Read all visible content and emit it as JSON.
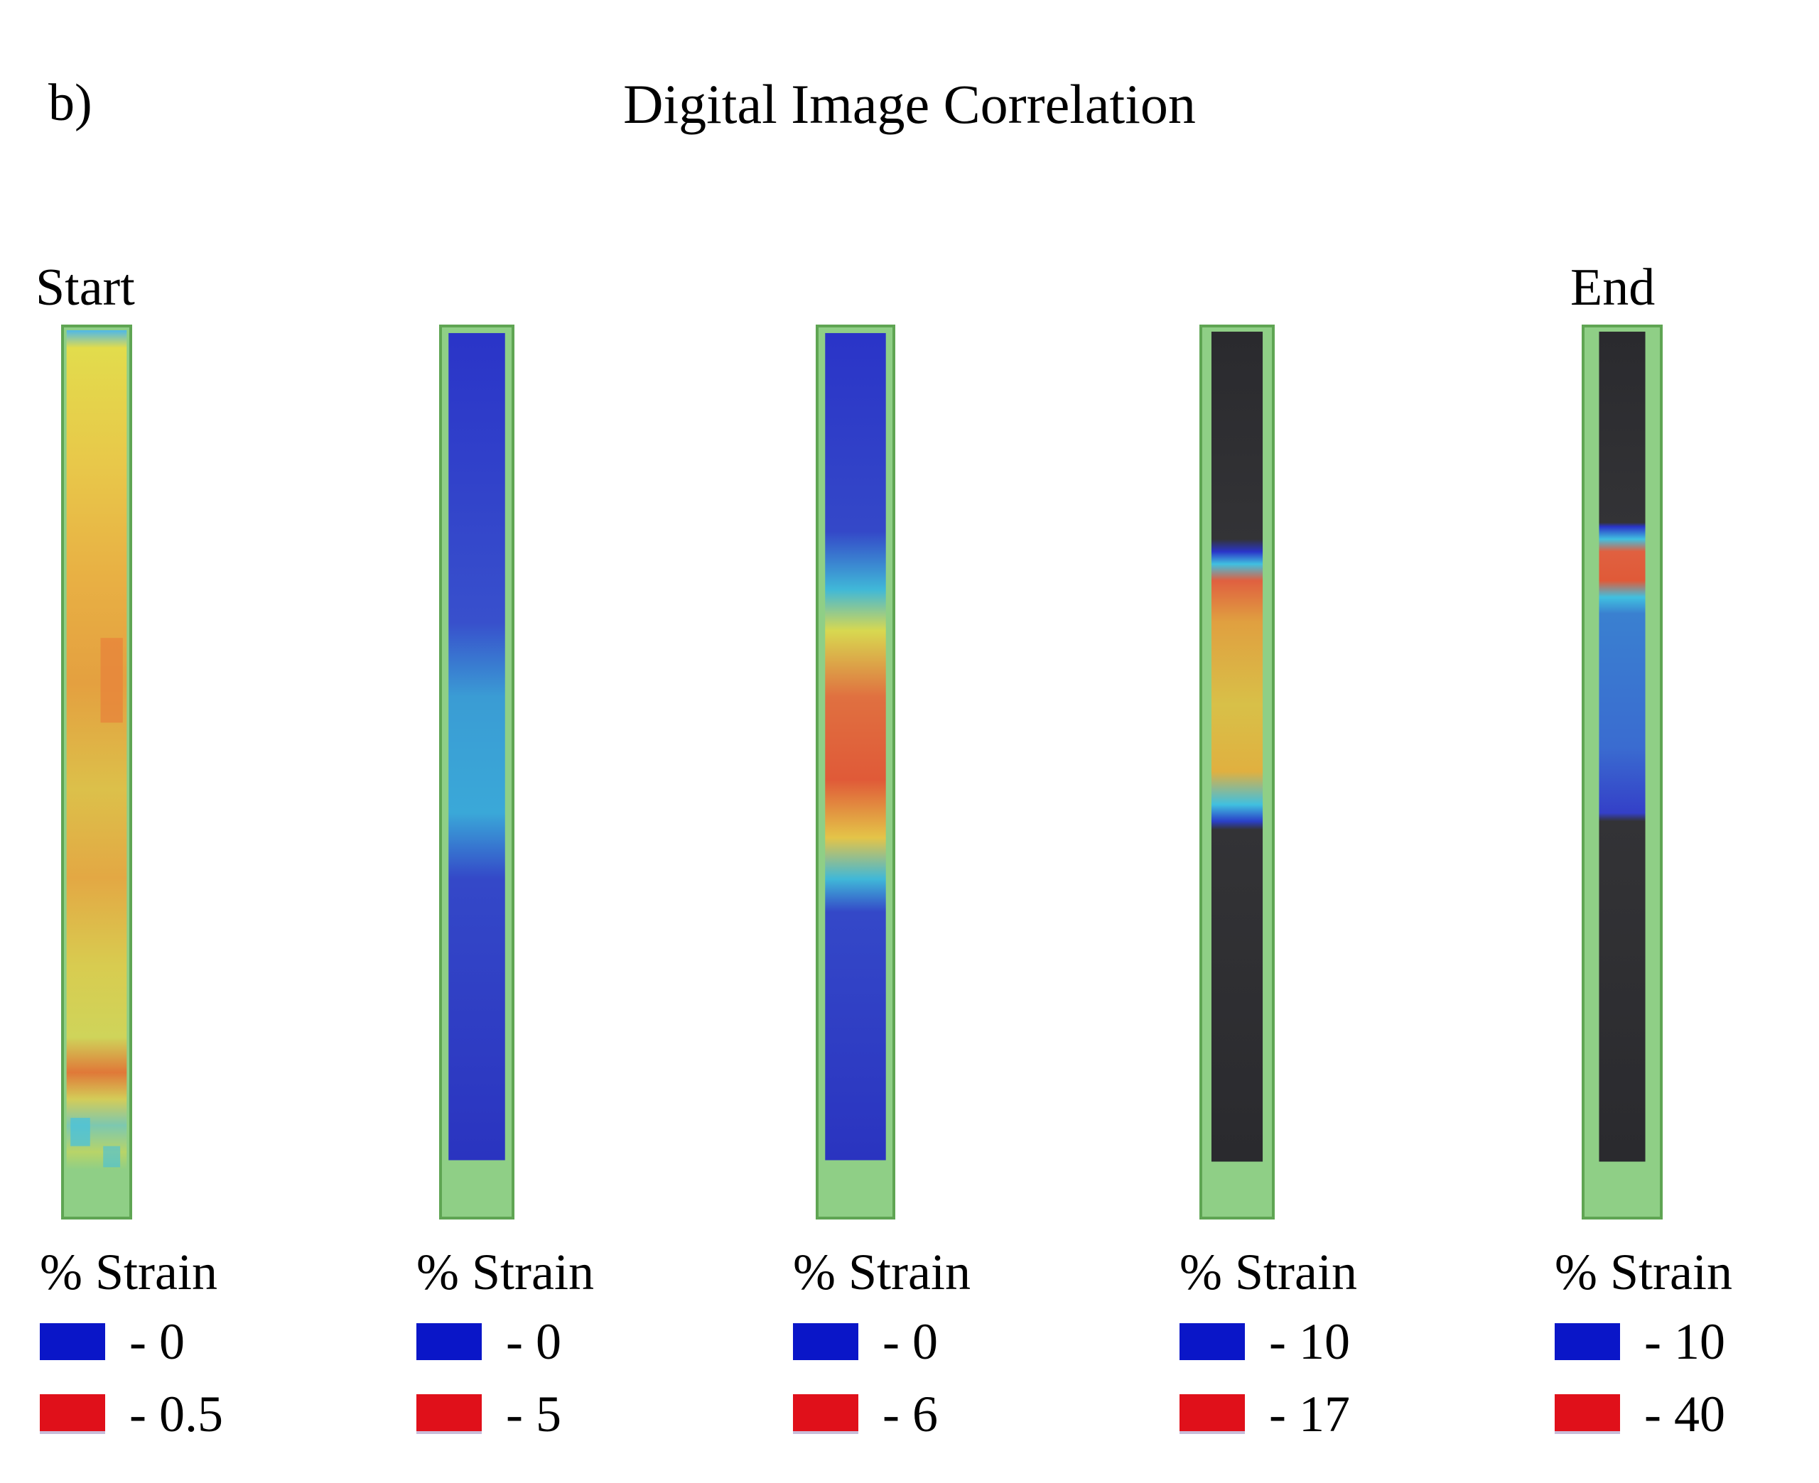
{
  "panel_label": "b)",
  "title": "Digital Image Correlation",
  "stage_labels": {
    "start": "Start",
    "end": "End"
  },
  "colors": {
    "low": "#0a16c8",
    "high": "#e0101a",
    "frame": "#8fcf86"
  },
  "strips": [
    {
      "legend": {
        "heading": "% Strain",
        "low": "- 0",
        "high": "- 0.5"
      }
    },
    {
      "legend": {
        "heading": "% Strain",
        "low": "- 0",
        "high": "- 5"
      }
    },
    {
      "legend": {
        "heading": "% Strain",
        "low": "- 0",
        "high": "- 6"
      }
    },
    {
      "legend": {
        "heading": "% Strain",
        "low": "- 10",
        "high": "- 17"
      }
    },
    {
      "legend": {
        "heading": "% Strain",
        "low": "- 10",
        "high": "- 40"
      }
    }
  ]
}
